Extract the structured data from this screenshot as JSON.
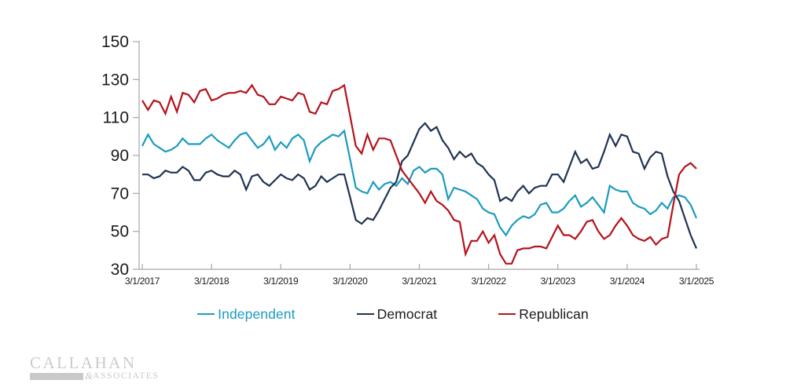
{
  "chart_data": {
    "type": "line",
    "title": "",
    "frequency": "monthly",
    "x_start_label": "3/1/2017",
    "x_end_label": "3/1/2025",
    "x_tick_labels": [
      "3/1/2017",
      "3/1/2018",
      "3/1/2019",
      "3/1/2020",
      "3/1/2021",
      "3/1/2022",
      "3/1/2023",
      "3/1/2024",
      "3/1/2025"
    ],
    "y_ticks": [
      150,
      130,
      110,
      90,
      70,
      50,
      30
    ],
    "ylim": [
      30,
      150
    ],
    "grid": false,
    "legend_position": "bottom",
    "axis_color": "#a6a6a6",
    "tick_label_color": "#1a1a1a",
    "series": [
      {
        "name": "Independent",
        "color": "#1b9bc0",
        "values": [
          95,
          101,
          96,
          94,
          92,
          93,
          95,
          99,
          96,
          96,
          96,
          99,
          101,
          98,
          96,
          94,
          98,
          101,
          102,
          98,
          94,
          96,
          100,
          93,
          97,
          94,
          99,
          101,
          98,
          87,
          94,
          97,
          99,
          101,
          100,
          103,
          88,
          73,
          71,
          70,
          76,
          72,
          75,
          76,
          74,
          78,
          75,
          82,
          84,
          81,
          83,
          83,
          80,
          67,
          73,
          72,
          71,
          69,
          67,
          62,
          60,
          59,
          52,
          48,
          53,
          56,
          58,
          57,
          59,
          64,
          65,
          60,
          60,
          62,
          66,
          69,
          63,
          65,
          68,
          64,
          60,
          74,
          72,
          71,
          71,
          65,
          63,
          62,
          59,
          61,
          65,
          62,
          68,
          69,
          68,
          64,
          57
        ]
      },
      {
        "name": "Democrat",
        "color": "#1f3352",
        "values": [
          80,
          80,
          78,
          79,
          82,
          81,
          81,
          84,
          82,
          77,
          77,
          81,
          82,
          80,
          79,
          79,
          82,
          80,
          72,
          79,
          80,
          76,
          74,
          77,
          80,
          78,
          77,
          80,
          78,
          72,
          74,
          79,
          76,
          78,
          80,
          80,
          68,
          56,
          54,
          57,
          56,
          61,
          67,
          73,
          76,
          87,
          90,
          97,
          104,
          107,
          103,
          105,
          98,
          94,
          88,
          92,
          89,
          91,
          86,
          84,
          80,
          77,
          66,
          68,
          66,
          71,
          74,
          70,
          73,
          74,
          74,
          80,
          80,
          76,
          84,
          92,
          86,
          88,
          83,
          84,
          92,
          101,
          95,
          101,
          100,
          92,
          91,
          83,
          89,
          92,
          91,
          79,
          71,
          66,
          57,
          48,
          41
        ]
      },
      {
        "name": "Republican",
        "color": "#b5121b",
        "values": [
          119,
          114,
          119,
          118,
          112,
          121,
          113,
          123,
          122,
          118,
          124,
          125,
          119,
          120,
          122,
          123,
          123,
          124,
          123,
          127,
          122,
          121,
          117,
          117,
          121,
          120,
          119,
          123,
          122,
          113,
          112,
          118,
          117,
          124,
          125,
          127,
          111,
          95,
          91,
          101,
          93,
          99,
          99,
          98,
          90,
          82,
          78,
          74,
          70,
          65,
          71,
          66,
          64,
          61,
          56,
          55,
          38,
          45,
          45,
          50,
          44,
          48,
          38,
          33,
          33,
          40,
          41,
          41,
          42,
          42,
          41,
          47,
          53,
          48,
          48,
          46,
          50,
          55,
          56,
          50,
          46,
          48,
          53,
          57,
          53,
          48,
          46,
          45,
          47,
          43,
          46,
          47,
          64,
          80,
          84,
          86,
          83
        ]
      }
    ]
  },
  "legend": {
    "items": [
      {
        "label": "Independent",
        "color": "#1b9bc0",
        "text_color": "#1b9bc0"
      },
      {
        "label": "Democrat",
        "color": "#1f3352",
        "text_color": "#1a1a1a"
      },
      {
        "label": "Republican",
        "color": "#b5121b",
        "text_color": "#1a1a1a"
      }
    ]
  },
  "logo": {
    "name_top": "CALLAHAN",
    "ampersand": "&",
    "name_bottom": "ASSOCIATES"
  }
}
